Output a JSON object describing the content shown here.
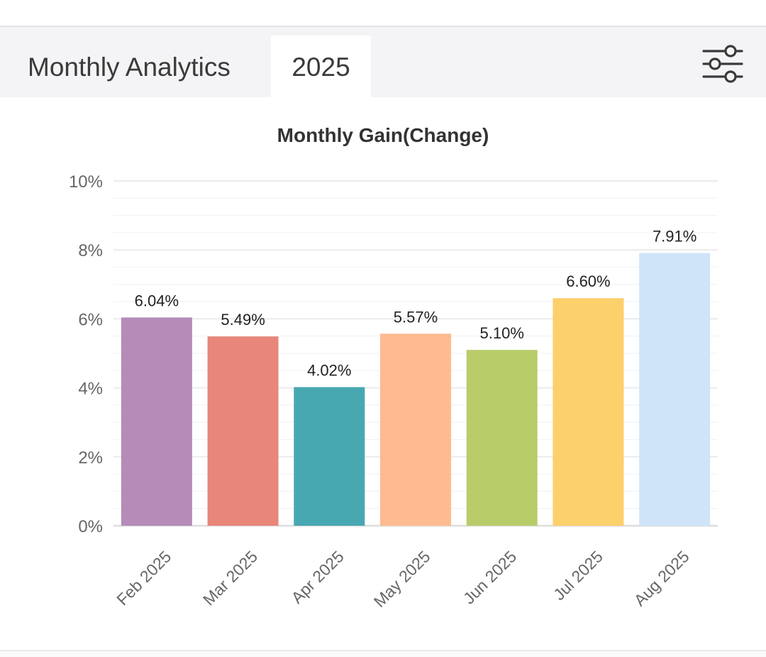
{
  "header": {
    "title": "Monthly Analytics",
    "year_tab": "2025",
    "filter_icon": "sliders-icon"
  },
  "colors": {
    "header_bg": "#f4f3f5",
    "grid": "#ebebeb",
    "text": "#333333",
    "tick": "#666666"
  },
  "chart_data": {
    "type": "bar",
    "title": "Monthly Gain(Change)",
    "xlabel": "",
    "ylabel": "",
    "categories": [
      "Feb 2025",
      "Mar 2025",
      "Apr 2025",
      "May 2025",
      "Jun 2025",
      "Jul 2025",
      "Aug 2025"
    ],
    "values": [
      6.04,
      5.49,
      4.02,
      5.57,
      5.1,
      6.6,
      7.91
    ],
    "value_labels": [
      "6.04%",
      "5.49%",
      "4.02%",
      "5.57%",
      "5.10%",
      "6.60%",
      "7.91%"
    ],
    "bar_colors": [
      "#b58bb8",
      "#e8867a",
      "#48a8b2",
      "#fdbb8f",
      "#b8cc6a",
      "#fcd06b",
      "#cfe4f9"
    ],
    "ylim": [
      0,
      10
    ],
    "yticks": [
      0,
      2,
      4,
      6,
      8,
      10
    ],
    "ytick_labels": [
      "0%",
      "2%",
      "4%",
      "6%",
      "8%",
      "10%"
    ],
    "grid": true,
    "legend": "none"
  }
}
